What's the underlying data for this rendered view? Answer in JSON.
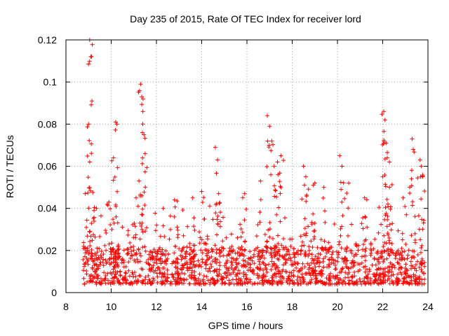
{
  "chart_data": {
    "type": "scatter",
    "title": "Day 235 of 2015, Rate Of TEC Index for receiver lord",
    "xlabel": "GPS time / hours",
    "ylabel": "ROTI / TECUs",
    "xlim": [
      8,
      24
    ],
    "ylim": [
      0,
      0.12
    ],
    "xticks": [
      "8",
      "10",
      "12",
      "14",
      "16",
      "18",
      "20",
      "22",
      "24"
    ],
    "yticks": [
      "0",
      "0.02",
      "0.04",
      "0.06",
      "0.08",
      "0.1",
      "0.12"
    ],
    "grid": true,
    "marker": "+",
    "series": [
      {
        "name": "ROTI",
        "color": "#ff0000",
        "base_range": [
          8.75,
          23.85
        ],
        "base_level": [
          0.004,
          0.022
        ],
        "spikes": [
          {
            "x": 8.85,
            "y": 0.047
          },
          {
            "x": 9.05,
            "y": 0.12
          },
          {
            "x": 9.1,
            "y": 0.112
          },
          {
            "x": 9.15,
            "y": 0.091
          },
          {
            "x": 9.0,
            "y": 0.08
          },
          {
            "x": 9.05,
            "y": 0.062
          },
          {
            "x": 9.35,
            "y": 0.04
          },
          {
            "x": 9.9,
            "y": 0.043
          },
          {
            "x": 10.1,
            "y": 0.064
          },
          {
            "x": 10.2,
            "y": 0.081
          },
          {
            "x": 10.25,
            "y": 0.08
          },
          {
            "x": 11.1,
            "y": 0.045
          },
          {
            "x": 11.3,
            "y": 0.099
          },
          {
            "x": 11.35,
            "y": 0.093
          },
          {
            "x": 11.4,
            "y": 0.086
          },
          {
            "x": 11.45,
            "y": 0.075
          },
          {
            "x": 11.5,
            "y": 0.066
          },
          {
            "x": 12.3,
            "y": 0.04
          },
          {
            "x": 12.8,
            "y": 0.044
          },
          {
            "x": 13.6,
            "y": 0.045
          },
          {
            "x": 14.0,
            "y": 0.048
          },
          {
            "x": 14.6,
            "y": 0.069
          },
          {
            "x": 14.7,
            "y": 0.063
          },
          {
            "x": 14.75,
            "y": 0.047
          },
          {
            "x": 15.9,
            "y": 0.047
          },
          {
            "x": 16.6,
            "y": 0.053
          },
          {
            "x": 16.9,
            "y": 0.084
          },
          {
            "x": 17.0,
            "y": 0.079
          },
          {
            "x": 17.1,
            "y": 0.072
          },
          {
            "x": 17.2,
            "y": 0.06
          },
          {
            "x": 17.35,
            "y": 0.062
          },
          {
            "x": 17.5,
            "y": 0.065
          },
          {
            "x": 18.5,
            "y": 0.06
          },
          {
            "x": 18.6,
            "y": 0.055
          },
          {
            "x": 19.0,
            "y": 0.052
          },
          {
            "x": 19.4,
            "y": 0.05
          },
          {
            "x": 20.1,
            "y": 0.065
          },
          {
            "x": 20.2,
            "y": 0.06
          },
          {
            "x": 20.5,
            "y": 0.052
          },
          {
            "x": 21.2,
            "y": 0.045
          },
          {
            "x": 22.05,
            "y": 0.086
          },
          {
            "x": 22.1,
            "y": 0.082
          },
          {
            "x": 22.15,
            "y": 0.071
          },
          {
            "x": 22.2,
            "y": 0.064
          },
          {
            "x": 22.3,
            "y": 0.062
          },
          {
            "x": 22.3,
            "y": 0.05
          },
          {
            "x": 22.9,
            "y": 0.045
          },
          {
            "x": 23.3,
            "y": 0.073
          },
          {
            "x": 23.35,
            "y": 0.068
          },
          {
            "x": 23.65,
            "y": 0.063
          },
          {
            "x": 23.7,
            "y": 0.06
          },
          {
            "x": 23.75,
            "y": 0.055
          }
        ]
      }
    ]
  }
}
